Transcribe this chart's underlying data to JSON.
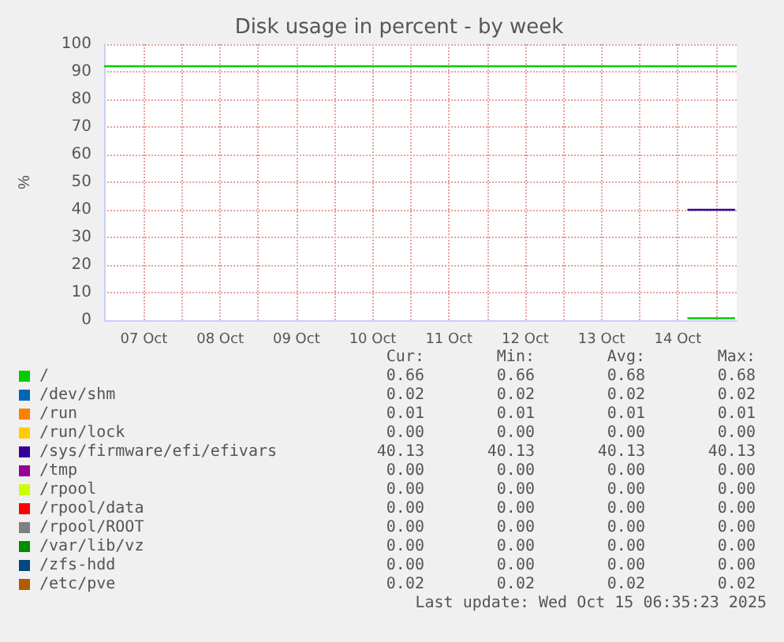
{
  "chart_data": {
    "type": "line",
    "title": "Disk usage in percent - by week",
    "ylabel": "%",
    "xlim": [
      "2025-10-06T23:30",
      "2025-10-15T06:30"
    ],
    "xticks": [
      {
        "value": "2025-10-07T12:00",
        "label": "07 Oct"
      },
      {
        "value": "2025-10-08T00:00",
        "label": null
      },
      {
        "value": "2025-10-08T12:00",
        "label": "08 Oct"
      },
      {
        "value": "2025-10-09T00:00",
        "label": null
      },
      {
        "value": "2025-10-09T12:00",
        "label": "09 Oct"
      },
      {
        "value": "2025-10-10T00:00",
        "label": null
      },
      {
        "value": "2025-10-10T12:00",
        "label": "10 Oct"
      },
      {
        "value": "2025-10-11T00:00",
        "label": null
      },
      {
        "value": "2025-10-11T12:00",
        "label": "11 Oct"
      },
      {
        "value": "2025-10-12T00:00",
        "label": null
      },
      {
        "value": "2025-10-12T12:00",
        "label": "12 Oct"
      },
      {
        "value": "2025-10-13T00:00",
        "label": null
      },
      {
        "value": "2025-10-13T12:00",
        "label": "13 Oct"
      },
      {
        "value": "2025-10-14T00:00",
        "label": null
      },
      {
        "value": "2025-10-14T12:00",
        "label": "14 Oct"
      },
      {
        "value": "2025-10-15T00:00",
        "label": null
      }
    ],
    "ylim": [
      0,
      100
    ],
    "yticks": [
      0,
      10,
      20,
      30,
      40,
      50,
      60,
      70,
      80,
      90,
      100
    ],
    "grid": true,
    "legend": "bottom",
    "marker": "none",
    "line_style": "solid",
    "series": [
      {
        "color": "#00cc00",
        "x": [
          "2025-10-06T23:30",
          "2025-10-15T06:30"
        ],
        "values": [
          92,
          92
        ]
      },
      {
        "name": "/",
        "color": "#00cc00",
        "x": [
          "2025-10-14T15:00",
          "2025-10-15T06:00"
        ],
        "values": [
          0.7,
          0.7
        ]
      },
      {
        "name": "/dev/shm",
        "color": "#0066b3"
      },
      {
        "name": "/run",
        "color": "#ff8000"
      },
      {
        "name": "/run/lock",
        "color": "#ffcc00"
      },
      {
        "name": "/sys/firmware/efi/efivars",
        "color": "#330099",
        "x": [
          "2025-10-14T15:00",
          "2025-10-15T06:00"
        ],
        "values": [
          40,
          40
        ]
      },
      {
        "name": "/tmp",
        "color": "#990099"
      },
      {
        "name": "/rpool",
        "color": "#ccff00"
      },
      {
        "name": "/rpool/data",
        "color": "#ff0000"
      },
      {
        "name": "/rpool/ROOT",
        "color": "#808080"
      },
      {
        "name": "/var/lib/vz",
        "color": "#008f00"
      },
      {
        "name": "/zfs-hdd",
        "color": "#00487d"
      },
      {
        "name": "/etc/pve",
        "color": "#b35a00"
      }
    ],
    "annotations": [
      "Cur:",
      "Min:",
      "Avg:",
      "Max:",
      "0.66",
      "0.66",
      "0.68",
      "0.68",
      "0.02",
      "0.02",
      "0.02",
      "0.02",
      "0.01",
      "0.01",
      "0.01",
      "0.01",
      "0.00",
      "0.00",
      "0.00",
      "0.00",
      "40.13",
      "40.13",
      "40.13",
      "40.13",
      "0.00",
      "0.00",
      "0.00",
      "0.00",
      "0.00",
      "0.00",
      "0.00",
      "0.00",
      "0.00",
      "0.00",
      "0.00",
      "0.00",
      "0.00",
      "0.00",
      "0.00",
      "0.00",
      "0.00",
      "0.00",
      "0.00",
      "0.00",
      "0.00",
      "0.00",
      "0.00",
      "0.00",
      "0.02",
      "0.02",
      "0.02",
      "0.02",
      "Last update: Wed Oct 15 06:35:23 2025"
    ]
  }
}
